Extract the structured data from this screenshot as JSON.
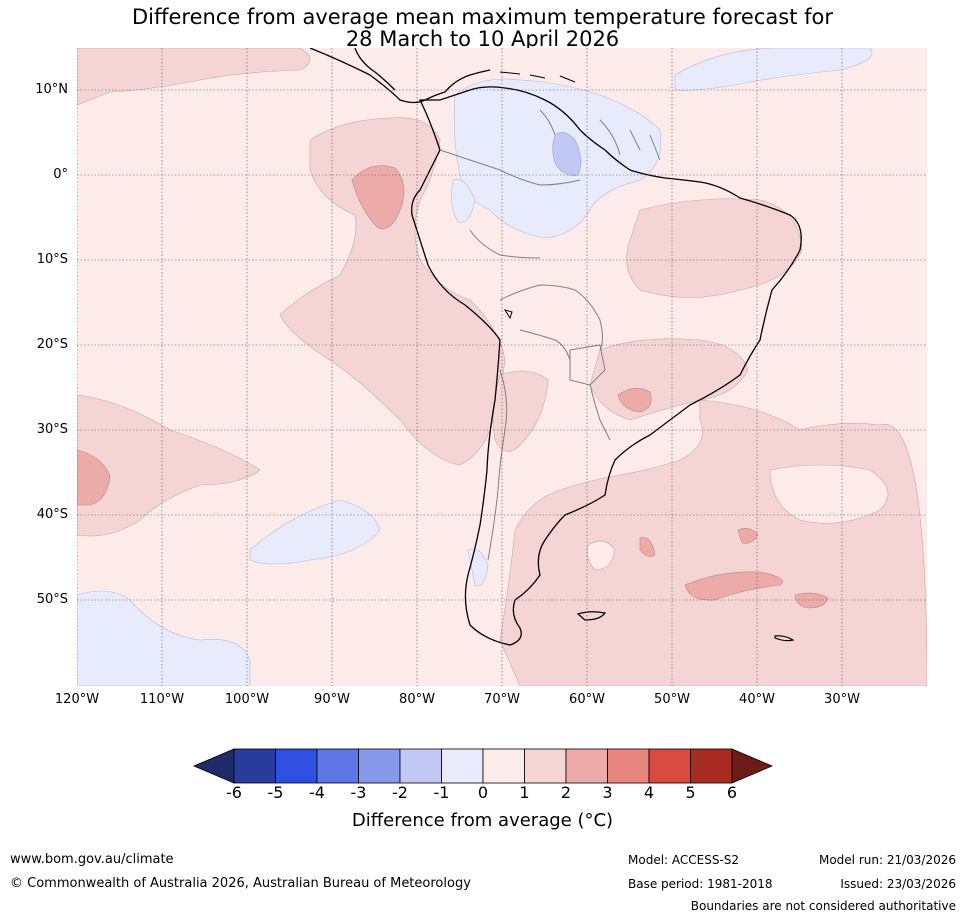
{
  "title": {
    "line1": "Difference from average mean maximum temperature forecast for",
    "line2": "28 March to 10 April 2026"
  },
  "map": {
    "lat_labels": [
      "10°N",
      "0°",
      "10°S",
      "20°S",
      "30°S",
      "40°S",
      "50°S"
    ],
    "lat_values": [
      10,
      0,
      -10,
      -20,
      -30,
      -40,
      -50
    ],
    "lon_labels": [
      "120°W",
      "110°W",
      "100°W",
      "90°W",
      "80°W",
      "70°W",
      "60°W",
      "50°W",
      "40°W",
      "30°W"
    ],
    "lon_values": [
      -120,
      -110,
      -100,
      -90,
      -80,
      -70,
      -60,
      -50,
      -40,
      -30
    ],
    "extent": {
      "lon_min": -120,
      "lon_max": -20,
      "lat_min": -60,
      "lat_max": 15
    }
  },
  "colorbar": {
    "ticks": [
      "-6",
      "-5",
      "-4",
      "-3",
      "-2",
      "-1",
      "0",
      "1",
      "2",
      "3",
      "4",
      "5",
      "6"
    ],
    "colors": [
      "#283c9e",
      "#2f4fe0",
      "#5e76e6",
      "#8799ea",
      "#c1c8f3",
      "#e8ebfb",
      "#fcebe9",
      "#f4d5d3",
      "#ecaba8",
      "#e8857f",
      "#d94a3f",
      "#a82b22"
    ],
    "under_color": "#1f2a6b",
    "over_color": "#6e1b18",
    "label": "Difference from average (°C)"
  },
  "footer": {
    "url": "www.bom.gov.au/climate",
    "copyright": "© Commonwealth of Australia 2026, Australian Bureau of Meteorology",
    "model": "Model: ACCESS-S2",
    "base_period": "Base period: 1981-2018",
    "model_run": "Model run: 21/03/2026",
    "issued": "Issued: 23/03/2026",
    "disclaimer": "Boundaries are not considered authoritative"
  }
}
